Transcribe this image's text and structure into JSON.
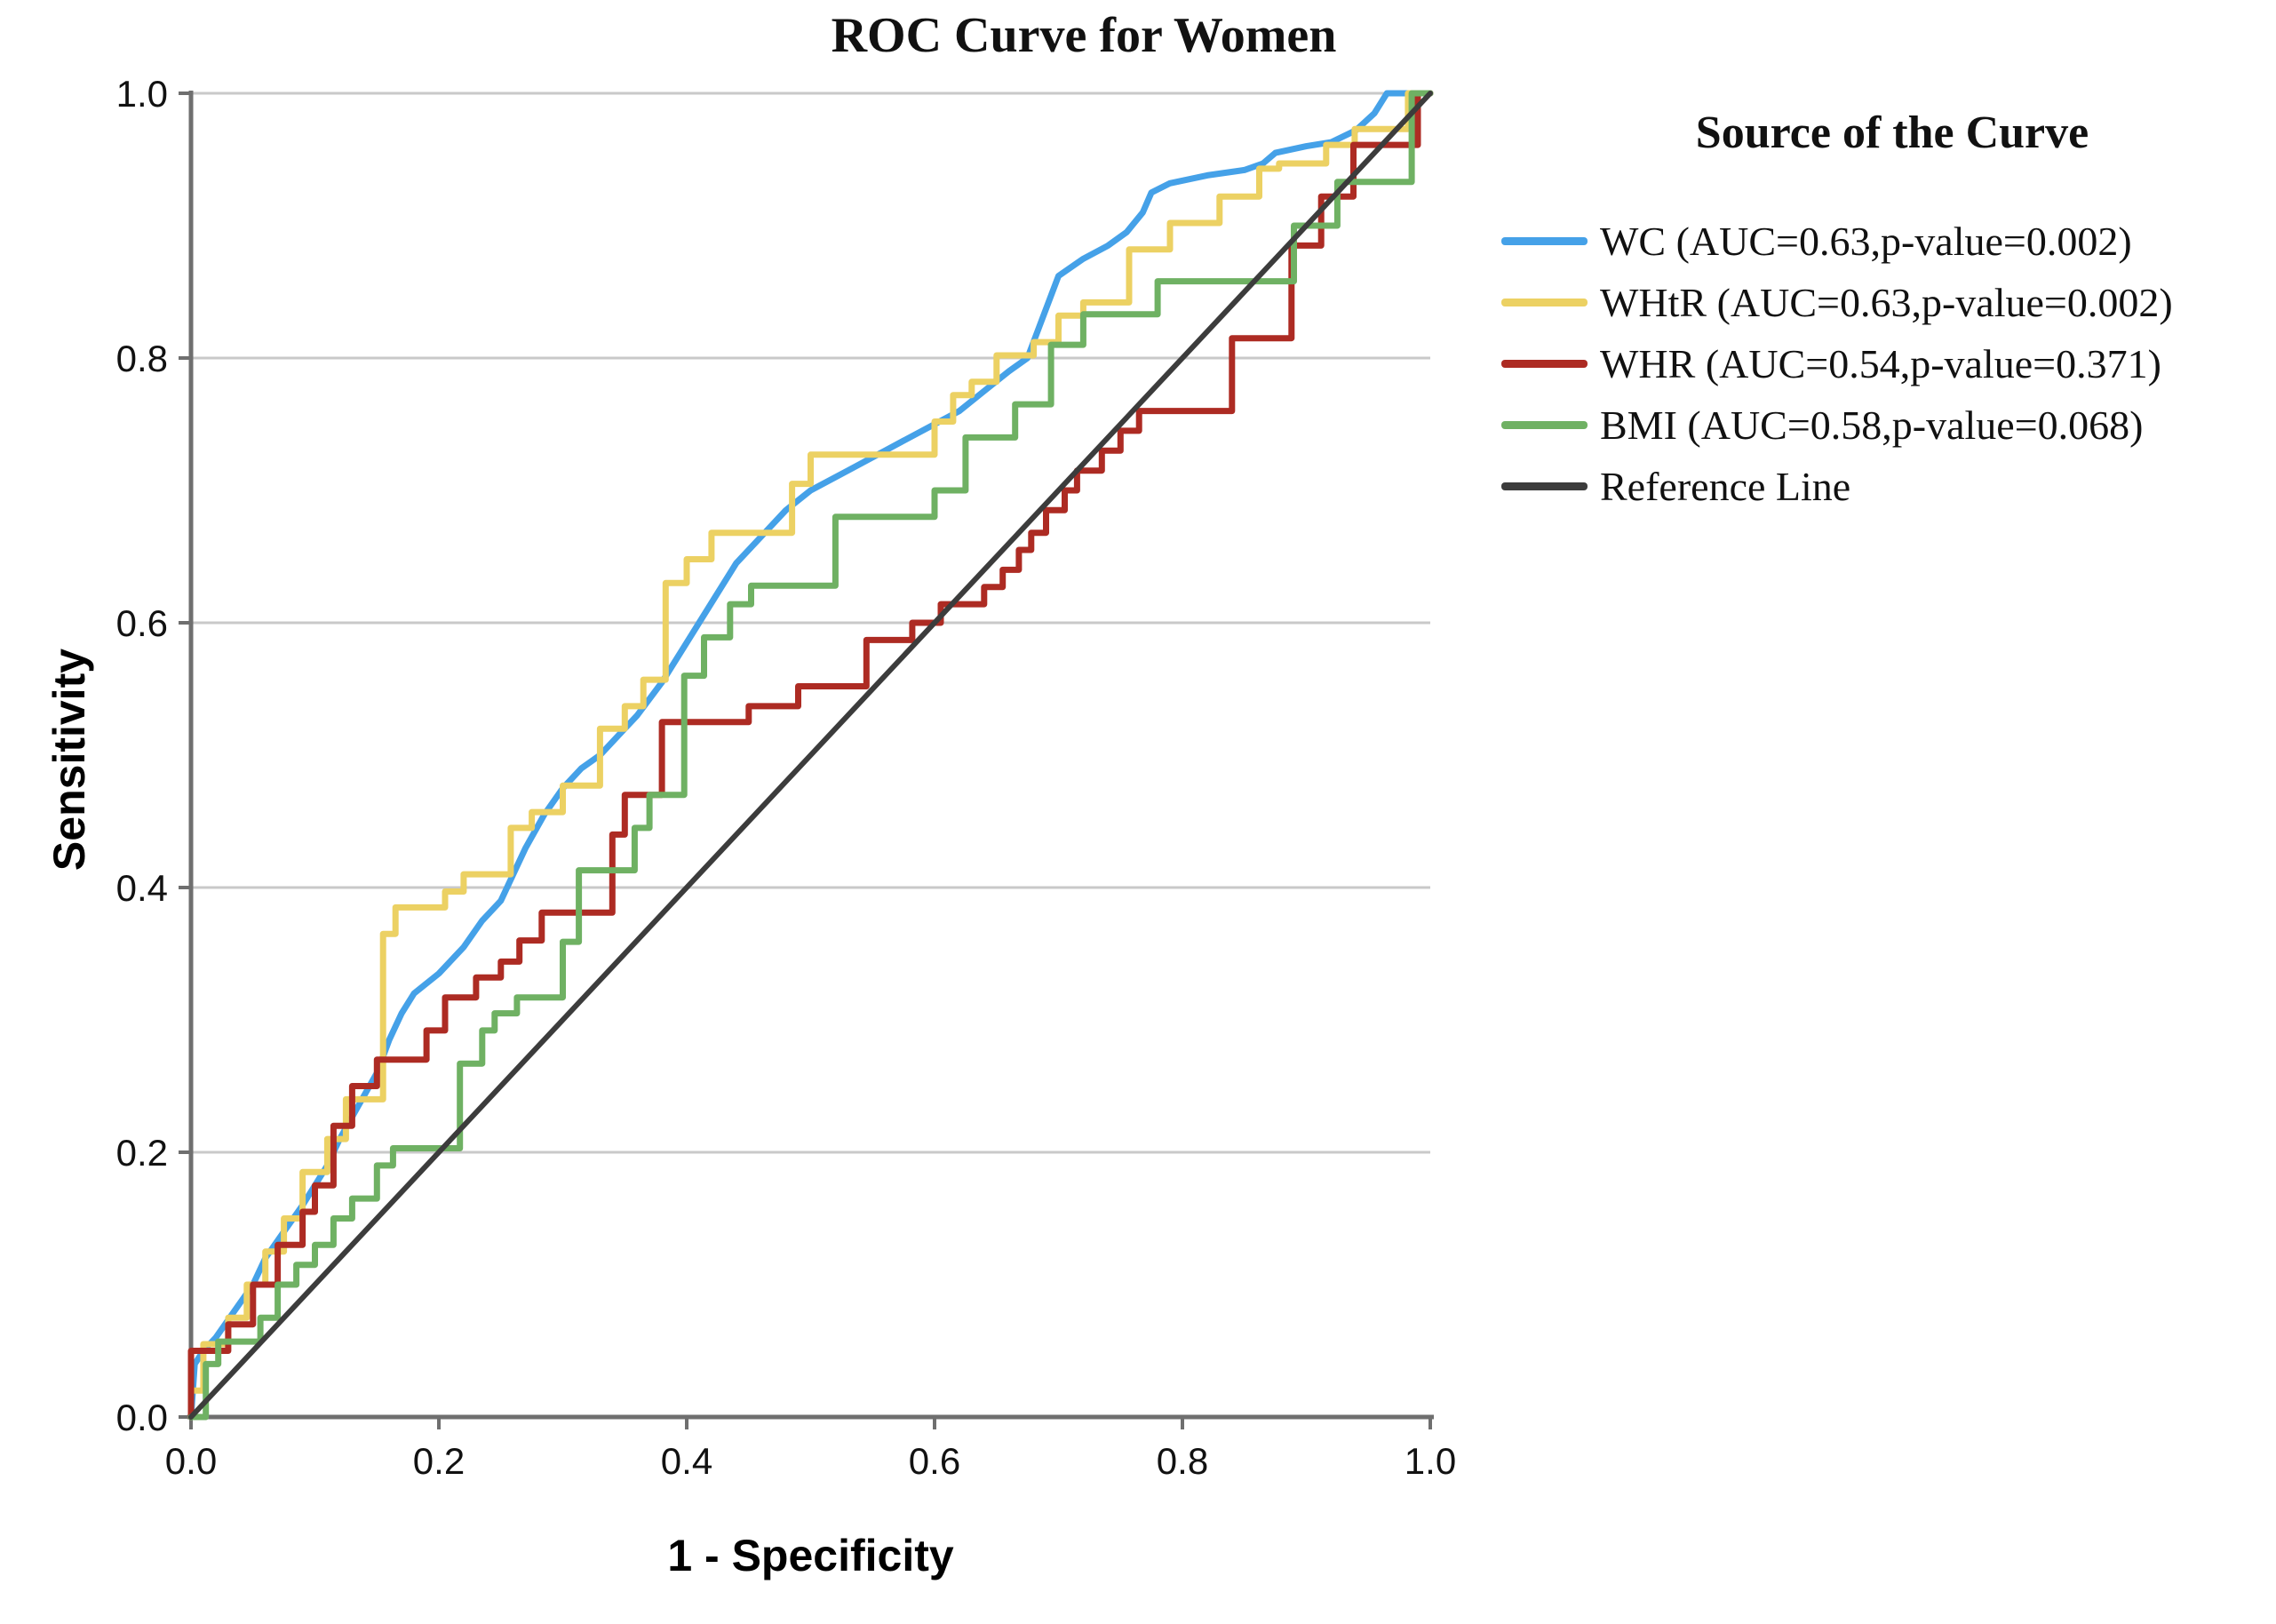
{
  "chart_data": {
    "type": "line",
    "subtype": "roc-step-curves",
    "title": "ROC Curve for Women",
    "xlabel": "1 - Specificity",
    "ylabel": "Sensitivity",
    "xlim": [
      0.0,
      1.0
    ],
    "ylim": [
      0.0,
      1.0
    ],
    "xticks": [
      0.0,
      0.2,
      0.4,
      0.6,
      0.8,
      1.0
    ],
    "yticks": [
      0.0,
      0.2,
      0.4,
      0.6,
      0.8,
      1.0
    ],
    "xtick_labels": [
      "0.0",
      "0.2",
      "0.4",
      "0.6",
      "0.8",
      "1.0"
    ],
    "ytick_labels": [
      "0.0",
      "0.2",
      "0.4",
      "0.6",
      "0.8",
      "1.0"
    ],
    "grid": "horizontal-only",
    "legend_title": "Source of the Curve",
    "legend_position": "right",
    "colors": {
      "grid": "#c9c9c9",
      "axis": "#6f6f6f",
      "text": "#111111"
    },
    "series": [
      {
        "name": "WC",
        "label": "WC (AUC=0.63,p-value=0.002)",
        "auc": 0.63,
        "p_value": 0.002,
        "color": "#45a1e8",
        "style": "smooth",
        "points": [
          [
            0,
            0
          ],
          [
            0.003,
            0.04
          ],
          [
            0.01,
            0.05
          ],
          [
            0.02,
            0.06
          ],
          [
            0.035,
            0.08
          ],
          [
            0.05,
            0.1
          ],
          [
            0.06,
            0.12
          ],
          [
            0.075,
            0.14
          ],
          [
            0.09,
            0.16
          ],
          [
            0.1,
            0.175
          ],
          [
            0.11,
            0.19
          ],
          [
            0.12,
            0.21
          ],
          [
            0.135,
            0.235
          ],
          [
            0.15,
            0.26
          ],
          [
            0.16,
            0.285
          ],
          [
            0.17,
            0.305
          ],
          [
            0.18,
            0.32
          ],
          [
            0.2,
            0.335
          ],
          [
            0.22,
            0.355
          ],
          [
            0.235,
            0.375
          ],
          [
            0.25,
            0.39
          ],
          [
            0.26,
            0.41
          ],
          [
            0.27,
            0.43
          ],
          [
            0.285,
            0.455
          ],
          [
            0.3,
            0.475
          ],
          [
            0.315,
            0.49
          ],
          [
            0.33,
            0.5
          ],
          [
            0.345,
            0.515
          ],
          [
            0.36,
            0.53
          ],
          [
            0.38,
            0.555
          ],
          [
            0.4,
            0.585
          ],
          [
            0.42,
            0.615
          ],
          [
            0.44,
            0.645
          ],
          [
            0.46,
            0.665
          ],
          [
            0.48,
            0.685
          ],
          [
            0.5,
            0.7
          ],
          [
            0.53,
            0.715
          ],
          [
            0.56,
            0.73
          ],
          [
            0.59,
            0.745
          ],
          [
            0.62,
            0.76
          ],
          [
            0.64,
            0.775
          ],
          [
            0.66,
            0.79
          ],
          [
            0.675,
            0.8
          ],
          [
            0.685,
            0.825
          ],
          [
            0.7,
            0.862
          ],
          [
            0.72,
            0.875
          ],
          [
            0.74,
            0.885
          ],
          [
            0.755,
            0.895
          ],
          [
            0.768,
            0.91
          ],
          [
            0.775,
            0.925
          ],
          [
            0.79,
            0.932
          ],
          [
            0.82,
            0.938
          ],
          [
            0.85,
            0.942
          ],
          [
            0.865,
            0.947
          ],
          [
            0.875,
            0.955
          ],
          [
            0.9,
            0.96
          ],
          [
            0.92,
            0.963
          ],
          [
            0.94,
            0.972
          ],
          [
            0.955,
            0.985
          ],
          [
            0.965,
            1
          ],
          [
            1,
            1
          ]
        ]
      },
      {
        "name": "WHtR",
        "label": "WHtR (AUC=0.63,p-value=0.002)",
        "auc": 0.63,
        "p_value": 0.002,
        "color": "#ecd163",
        "style": "step",
        "points": [
          [
            0,
            0
          ],
          [
            0,
            0.02
          ],
          [
            0.01,
            0.02
          ],
          [
            0.01,
            0.055
          ],
          [
            0.03,
            0.055
          ],
          [
            0.03,
            0.075
          ],
          [
            0.045,
            0.075
          ],
          [
            0.045,
            0.1
          ],
          [
            0.06,
            0.1
          ],
          [
            0.06,
            0.125
          ],
          [
            0.075,
            0.125
          ],
          [
            0.075,
            0.15
          ],
          [
            0.09,
            0.15
          ],
          [
            0.09,
            0.185
          ],
          [
            0.11,
            0.185
          ],
          [
            0.11,
            0.21
          ],
          [
            0.125,
            0.21
          ],
          [
            0.125,
            0.24
          ],
          [
            0.155,
            0.24
          ],
          [
            0.155,
            0.365
          ],
          [
            0.165,
            0.365
          ],
          [
            0.165,
            0.385
          ],
          [
            0.205,
            0.385
          ],
          [
            0.205,
            0.397
          ],
          [
            0.22,
            0.397
          ],
          [
            0.22,
            0.41
          ],
          [
            0.258,
            0.41
          ],
          [
            0.258,
            0.445
          ],
          [
            0.275,
            0.445
          ],
          [
            0.275,
            0.457
          ],
          [
            0.3,
            0.457
          ],
          [
            0.3,
            0.477
          ],
          [
            0.33,
            0.477
          ],
          [
            0.33,
            0.52
          ],
          [
            0.35,
            0.52
          ],
          [
            0.35,
            0.537
          ],
          [
            0.365,
            0.537
          ],
          [
            0.365,
            0.557
          ],
          [
            0.383,
            0.557
          ],
          [
            0.383,
            0.63
          ],
          [
            0.4,
            0.63
          ],
          [
            0.4,
            0.648
          ],
          [
            0.42,
            0.648
          ],
          [
            0.42,
            0.668
          ],
          [
            0.485,
            0.668
          ],
          [
            0.485,
            0.705
          ],
          [
            0.5,
            0.705
          ],
          [
            0.5,
            0.727
          ],
          [
            0.6,
            0.727
          ],
          [
            0.6,
            0.752
          ],
          [
            0.615,
            0.752
          ],
          [
            0.615,
            0.772
          ],
          [
            0.63,
            0.772
          ],
          [
            0.63,
            0.782
          ],
          [
            0.65,
            0.782
          ],
          [
            0.65,
            0.802
          ],
          [
            0.68,
            0.802
          ],
          [
            0.68,
            0.812
          ],
          [
            0.7,
            0.812
          ],
          [
            0.7,
            0.832
          ],
          [
            0.72,
            0.832
          ],
          [
            0.72,
            0.842
          ],
          [
            0.757,
            0.842
          ],
          [
            0.757,
            0.882
          ],
          [
            0.79,
            0.882
          ],
          [
            0.79,
            0.902
          ],
          [
            0.83,
            0.902
          ],
          [
            0.83,
            0.922
          ],
          [
            0.862,
            0.922
          ],
          [
            0.862,
            0.943
          ],
          [
            0.878,
            0.943
          ],
          [
            0.878,
            0.947
          ],
          [
            0.916,
            0.947
          ],
          [
            0.916,
            0.961
          ],
          [
            0.939,
            0.961
          ],
          [
            0.939,
            0.973
          ],
          [
            0.982,
            0.973
          ],
          [
            0.982,
            1
          ],
          [
            1,
            1
          ]
        ]
      },
      {
        "name": "WHR",
        "label": "WHR (AUC=0.54,p-value=0.371)",
        "auc": 0.54,
        "p_value": 0.371,
        "color": "#ad2b23",
        "style": "step",
        "points": [
          [
            0,
            0
          ],
          [
            0,
            0.05
          ],
          [
            0.03,
            0.05
          ],
          [
            0.03,
            0.07
          ],
          [
            0.05,
            0.07
          ],
          [
            0.05,
            0.1
          ],
          [
            0.07,
            0.1
          ],
          [
            0.07,
            0.13
          ],
          [
            0.09,
            0.13
          ],
          [
            0.09,
            0.155
          ],
          [
            0.1,
            0.155
          ],
          [
            0.1,
            0.175
          ],
          [
            0.115,
            0.175
          ],
          [
            0.115,
            0.22
          ],
          [
            0.13,
            0.22
          ],
          [
            0.13,
            0.25
          ],
          [
            0.15,
            0.25
          ],
          [
            0.15,
            0.27
          ],
          [
            0.19,
            0.27
          ],
          [
            0.19,
            0.292
          ],
          [
            0.205,
            0.292
          ],
          [
            0.205,
            0.317
          ],
          [
            0.23,
            0.317
          ],
          [
            0.23,
            0.332
          ],
          [
            0.25,
            0.332
          ],
          [
            0.25,
            0.344
          ],
          [
            0.265,
            0.344
          ],
          [
            0.265,
            0.36
          ],
          [
            0.283,
            0.36
          ],
          [
            0.283,
            0.381
          ],
          [
            0.34,
            0.381
          ],
          [
            0.34,
            0.44
          ],
          [
            0.35,
            0.44
          ],
          [
            0.35,
            0.47
          ],
          [
            0.38,
            0.47
          ],
          [
            0.38,
            0.525
          ],
          [
            0.45,
            0.525
          ],
          [
            0.45,
            0.537
          ],
          [
            0.49,
            0.537
          ],
          [
            0.49,
            0.552
          ],
          [
            0.545,
            0.552
          ],
          [
            0.545,
            0.587
          ],
          [
            0.582,
            0.587
          ],
          [
            0.582,
            0.6
          ],
          [
            0.605,
            0.6
          ],
          [
            0.605,
            0.614
          ],
          [
            0.64,
            0.614
          ],
          [
            0.64,
            0.627
          ],
          [
            0.655,
            0.627
          ],
          [
            0.655,
            0.64
          ],
          [
            0.668,
            0.64
          ],
          [
            0.668,
            0.655
          ],
          [
            0.678,
            0.655
          ],
          [
            0.678,
            0.668
          ],
          [
            0.69,
            0.668
          ],
          [
            0.69,
            0.685
          ],
          [
            0.705,
            0.685
          ],
          [
            0.705,
            0.7
          ],
          [
            0.715,
            0.7
          ],
          [
            0.715,
            0.715
          ],
          [
            0.735,
            0.715
          ],
          [
            0.735,
            0.73
          ],
          [
            0.75,
            0.73
          ],
          [
            0.75,
            0.745
          ],
          [
            0.765,
            0.745
          ],
          [
            0.765,
            0.76
          ],
          [
            0.84,
            0.76
          ],
          [
            0.84,
            0.815
          ],
          [
            0.888,
            0.815
          ],
          [
            0.888,
            0.885
          ],
          [
            0.912,
            0.885
          ],
          [
            0.912,
            0.922
          ],
          [
            0.938,
            0.922
          ],
          [
            0.938,
            0.961
          ],
          [
            0.99,
            0.961
          ],
          [
            0.99,
            1
          ],
          [
            1,
            1
          ]
        ]
      },
      {
        "name": "BMI",
        "label": "BMI (AUC=0.58,p-value=0.068)",
        "auc": 0.58,
        "p_value": 0.068,
        "color": "#6fb163",
        "style": "step",
        "points": [
          [
            0,
            0
          ],
          [
            0.012,
            0
          ],
          [
            0.012,
            0.04
          ],
          [
            0.022,
            0.04
          ],
          [
            0.022,
            0.057
          ],
          [
            0.056,
            0.057
          ],
          [
            0.056,
            0.075
          ],
          [
            0.07,
            0.075
          ],
          [
            0.07,
            0.1
          ],
          [
            0.085,
            0.1
          ],
          [
            0.085,
            0.115
          ],
          [
            0.1,
            0.115
          ],
          [
            0.1,
            0.13
          ],
          [
            0.115,
            0.13
          ],
          [
            0.115,
            0.15
          ],
          [
            0.13,
            0.15
          ],
          [
            0.13,
            0.165
          ],
          [
            0.15,
            0.165
          ],
          [
            0.15,
            0.19
          ],
          [
            0.163,
            0.19
          ],
          [
            0.163,
            0.203
          ],
          [
            0.217,
            0.203
          ],
          [
            0.217,
            0.267
          ],
          [
            0.235,
            0.267
          ],
          [
            0.235,
            0.292
          ],
          [
            0.245,
            0.292
          ],
          [
            0.245,
            0.305
          ],
          [
            0.263,
            0.305
          ],
          [
            0.263,
            0.317
          ],
          [
            0.3,
            0.317
          ],
          [
            0.3,
            0.359
          ],
          [
            0.313,
            0.359
          ],
          [
            0.313,
            0.413
          ],
          [
            0.358,
            0.413
          ],
          [
            0.358,
            0.445
          ],
          [
            0.37,
            0.445
          ],
          [
            0.37,
            0.47
          ],
          [
            0.398,
            0.47
          ],
          [
            0.398,
            0.56
          ],
          [
            0.414,
            0.56
          ],
          [
            0.414,
            0.589
          ],
          [
            0.435,
            0.589
          ],
          [
            0.435,
            0.614
          ],
          [
            0.452,
            0.614
          ],
          [
            0.452,
            0.628
          ],
          [
            0.52,
            0.628
          ],
          [
            0.52,
            0.68
          ],
          [
            0.6,
            0.68
          ],
          [
            0.6,
            0.7
          ],
          [
            0.625,
            0.7
          ],
          [
            0.625,
            0.74
          ],
          [
            0.665,
            0.74
          ],
          [
            0.665,
            0.765
          ],
          [
            0.694,
            0.765
          ],
          [
            0.694,
            0.81
          ],
          [
            0.72,
            0.81
          ],
          [
            0.72,
            0.833
          ],
          [
            0.78,
            0.833
          ],
          [
            0.78,
            0.858
          ],
          [
            0.89,
            0.858
          ],
          [
            0.89,
            0.9
          ],
          [
            0.925,
            0.9
          ],
          [
            0.925,
            0.933
          ],
          [
            0.985,
            0.933
          ],
          [
            0.985,
            1
          ],
          [
            1,
            1
          ]
        ]
      }
    ],
    "reference_line": {
      "name": "Reference",
      "label": "Reference Line",
      "color": "#3c3c3c",
      "points": [
        [
          0,
          0
        ],
        [
          1,
          1
        ]
      ]
    }
  }
}
